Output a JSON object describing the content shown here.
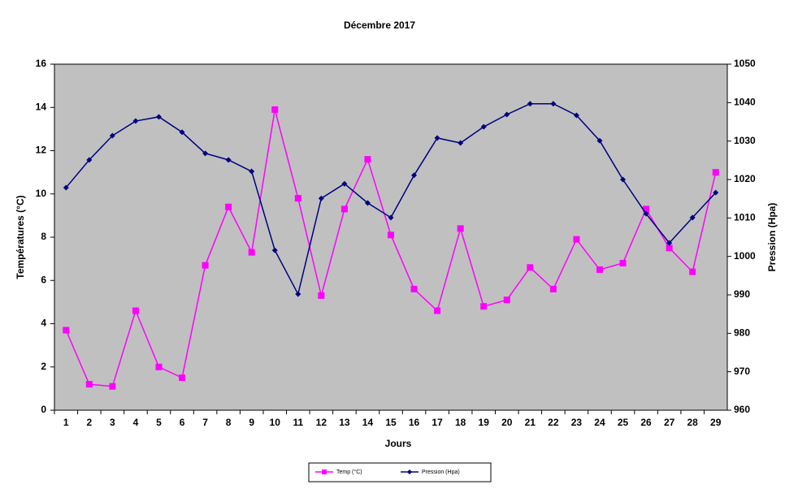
{
  "chart_data": {
    "type": "line",
    "title": "Décembre 2017",
    "x_label": "Jours",
    "y_label": "Températures (°C)",
    "y2_label": "Pression (Hpa)",
    "categories": [
      "1",
      "2",
      "3",
      "4",
      "5",
      "6",
      "7",
      "8",
      "9",
      "10",
      "11",
      "12",
      "13",
      "14",
      "15",
      "16",
      "17",
      "18",
      "19",
      "20",
      "21",
      "22",
      "23",
      "24",
      "25",
      "26",
      "27",
      "28",
      "29"
    ],
    "series": [
      {
        "name": "Temp (°C)",
        "color": "#ff00ff",
        "marker": "square",
        "values": [
          3.7,
          1.2,
          1.1,
          4.6,
          2.0,
          1.5,
          6.7,
          9.4,
          7.3,
          13.9,
          9.8,
          5.3,
          9.3,
          11.6,
          8.1,
          5.6,
          4.6,
          8.4,
          4.8,
          5.1,
          6.6,
          5.6,
          7.9,
          6.5,
          6.8,
          9.3,
          7.5,
          6.4,
          11.0
        ]
      },
      {
        "name": "Pression (Hpa)",
        "color": "#000080",
        "marker": "diamond",
        "axis": "y2",
        "values": [
          1017.9,
          1025.1,
          1031.4,
          1035.2,
          1036.3,
          1032.3,
          1026.8,
          1025.1,
          1022.1,
          1001.6,
          990.2,
          1015.1,
          1018.9,
          1013.9,
          1010.1,
          1021.1,
          1030.8,
          1029.5,
          1033.7,
          1036.9,
          1039.7,
          1039.7,
          1036.7,
          1030.1,
          1020.0,
          1011.1,
          1003.5,
          1010.1,
          1016.6
        ]
      }
    ],
    "ylim": [
      0,
      16
    ],
    "yticks": [
      0,
      2,
      4,
      6,
      8,
      10,
      12,
      14,
      16
    ],
    "y2lim": [
      960,
      1050
    ],
    "y2ticks": [
      960,
      970,
      980,
      990,
      1000,
      1010,
      1020,
      1030,
      1040,
      1050
    ],
    "grid": false,
    "legend": "bottom",
    "plot_background": "#c0c0c0"
  }
}
